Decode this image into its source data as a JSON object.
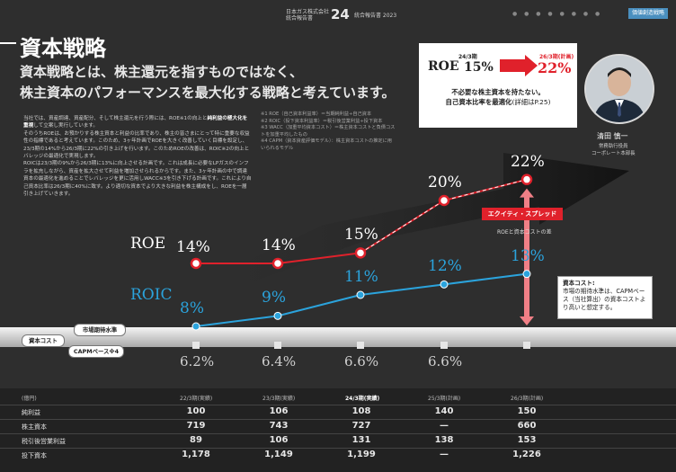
{
  "header": {
    "left_line1": "日本ガス株式会社",
    "left_line2": "統合報告書",
    "page_number": "24",
    "right_text": "統合報告書 2023",
    "dots": "● ● ● ● ● ● ● ●",
    "tag": "価値創造戦略"
  },
  "title": "資本戦略",
  "lead_line1": "資本戦略とは、株主還元を指すものではなく、",
  "lead_line2": "株主資本のパフォーマンスを最大化する戦略と考えています。",
  "body": {
    "p1": "当社では、資産調達、資産配分、そして株主還元を行う際には、ROE※1の向上と",
    "p1_bold": "純利益の極大化を重視",
    "p1_end": "して立案し実行しています。",
    "p2": "そのうちROEは、お預かりする株主資本と利益の比率であり、株主の皆さまにとって特に重要な収益性の指標であると考えています。このため、3ヶ年計画でROEを大きく改善していく目標を設定し、23/3期の14%から26/3期に22%の引き上げを行います。このためROEの改善は、ROIC※2の向上とバレッジの最適化で実現します。",
    "p3": "ROICは23/3期の9%から26/3期に13%に向上させる計画です。これは成長に必要なLPガスのインフラを拡充しながら、資産を拡大させて利益を増加させられるからです。また、3ヶ年計画の中で調達資本の最適化を進めることでレバレッジを更に活用しWACC※3を引き下げる計画です。これにより自己資本比率は26/3期に40%に致す。より適切な資本でより大きな利益を株主構成をし、ROEを一層引き上げていきます。"
  },
  "notes": [
    "※1 ROE（自己資本利益率）＝当期純利益÷自己資本",
    "※2 ROIC（投下資本利益率）＝税引後営業利益÷投下資本",
    "※3 WACC（加重平均資本コスト）＝株主資本コストと負債コストを加重平均したもの",
    "※4 CAPM（資本資産評価モデル）：株主資本コストの推定に用いられるモデル"
  ],
  "callout": {
    "period1": "24/3期",
    "roe_label": "ROE",
    "roe_value": "15%",
    "period2": "26/3期(計画)",
    "roe_value2": "22%",
    "line1": "不必要な株主資本を持たない。",
    "line2": "自己資本比率を最適化",
    "line2_ref": "(詳細はP.25)"
  },
  "person": {
    "name": "清田 慎一",
    "title1": "常務執行役員",
    "title2": "コーポレート本部長"
  },
  "chart_data": {
    "type": "line",
    "categories": [
      "22/3期(実績)",
      "23/3期(実績)",
      "24/3期(実績)",
      "25/3期(計画)",
      "26/3期(計画)"
    ],
    "series": [
      {
        "name": "ROE",
        "values": [
          14,
          14,
          15,
          20,
          22
        ],
        "labels": [
          "14%",
          "14%",
          "15%",
          "20%",
          "22%"
        ],
        "color": "#e0212b"
      },
      {
        "name": "ROIC",
        "values": [
          8,
          9,
          11,
          12,
          13
        ],
        "labels": [
          "8%",
          "9%",
          "11%",
          "12%",
          "13%"
        ],
        "color": "#2ba3dc"
      },
      {
        "name": "資本コスト",
        "values": [
          6.2,
          6.4,
          6.6,
          6.6,
          null
        ],
        "labels": [
          "6.2%",
          "6.4%",
          "6.6%",
          "6.6%",
          ""
        ],
        "color": "#d0d0d0"
      }
    ],
    "ylim": [
      5,
      23
    ],
    "annotations": {
      "spread_label": "エクイティ・スプレッド",
      "spread_sub": "ROEと資本コストの差",
      "cost_note_title": "資本コスト:",
      "cost_note_body": "市場の期待水準は、CAPMベース（当社算出）の資本コストより高いと想定する。",
      "pill_cost": "資本コスト",
      "pill_market": "市場期待水準",
      "pill_capm": "CAPMベース※4"
    }
  },
  "table": {
    "header_unit": "(億円)",
    "columns": [
      "22/3期(実績)",
      "23/3期(実績)",
      "24/3期(実績)",
      "25/3期(計画)",
      "26/3期(計画)"
    ],
    "rows": [
      {
        "label": "純利益",
        "values": [
          "100",
          "106",
          "108",
          "140",
          "150"
        ]
      },
      {
        "label": "株主資本",
        "values": [
          "719",
          "743",
          "727",
          "—",
          "660"
        ]
      },
      {
        "label": "税引後営業利益",
        "values": [
          "89",
          "106",
          "131",
          "138",
          "153"
        ]
      },
      {
        "label": "投下資本",
        "values": [
          "1,178",
          "1,149",
          "1,199",
          "—",
          "1,226"
        ]
      }
    ]
  }
}
